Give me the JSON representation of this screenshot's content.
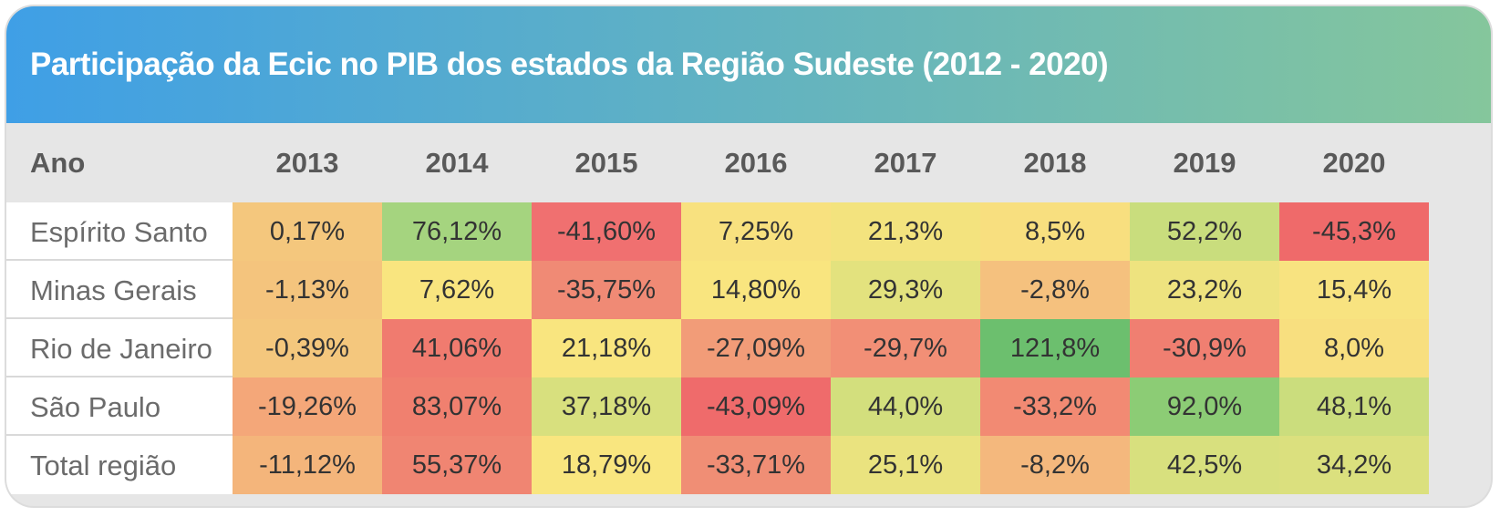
{
  "title": "Participação da Ecic no PIB dos estados da Região Sudeste (2012 - 2020)",
  "colors": {
    "title_gradient_start": "#3f9fe6",
    "title_gradient_end": "#85c69c",
    "header_bg": "#e6e6e6"
  },
  "chart_data": {
    "type": "table",
    "title": "Participação da Ecic no PIB dos estados da Região Sudeste (2012 - 2020)",
    "row_header_label": "Ano",
    "columns": [
      "2013",
      "2014",
      "2015",
      "2016",
      "2017",
      "2018",
      "2019",
      "2020"
    ],
    "rows": [
      {
        "label": "Espírito Santo",
        "values": [
          "0,17%",
          "76,12%",
          "-41,60%",
          "7,25%",
          "21,3%",
          "8,5%",
          "52,2%",
          "-45,3%"
        ],
        "colors": [
          "#f4c77d",
          "#a5d47f",
          "#f07070",
          "#f8e17f",
          "#f3e37e",
          "#f8df7f",
          "#c9dd7d",
          "#ef6a6a"
        ]
      },
      {
        "label": "Minas Gerais",
        "values": [
          "-1,13%",
          "7,62%",
          "-35,75%",
          "14,80%",
          "29,3%",
          "-2,8%",
          "23,2%",
          "15,4%"
        ],
        "colors": [
          "#f4c47d",
          "#f9e57f",
          "#f08a75",
          "#f9e57f",
          "#e3e27e",
          "#f5c17e",
          "#eee37f",
          "#f8e380"
        ]
      },
      {
        "label": "Rio de Janeiro",
        "values": [
          "-0,39%",
          "41,06%",
          "21,18%",
          "-27,09%",
          "-29,7%",
          "121,8%",
          "-30,9%",
          "8,0%"
        ],
        "colors": [
          "#f4c77d",
          "#f07b6f",
          "#f9e57f",
          "#f29c78",
          "#f28f76",
          "#6cbf6e",
          "#f07f71",
          "#f8df7f"
        ]
      },
      {
        "label": "São Paulo",
        "values": [
          "-19,26%",
          "83,07%",
          "37,18%",
          "-43,09%",
          "44,0%",
          "-33,2%",
          "92,0%",
          "48,1%"
        ],
        "colors": [
          "#f4a779",
          "#f0806f",
          "#d8e07e",
          "#ef6b6b",
          "#d3df7d",
          "#f28a73",
          "#8ccc75",
          "#cbdd7d"
        ]
      },
      {
        "label": "Total região",
        "values": [
          "-11,12%",
          "55,37%",
          "18,79%",
          "-33,71%",
          "25,1%",
          "-8,2%",
          "42,5%",
          "34,2%"
        ],
        "colors": [
          "#f4b57b",
          "#f08572",
          "#f9e67f",
          "#f08e75",
          "#eae37f",
          "#f4b87d",
          "#d8e07e",
          "#dbe07e"
        ]
      }
    ]
  }
}
